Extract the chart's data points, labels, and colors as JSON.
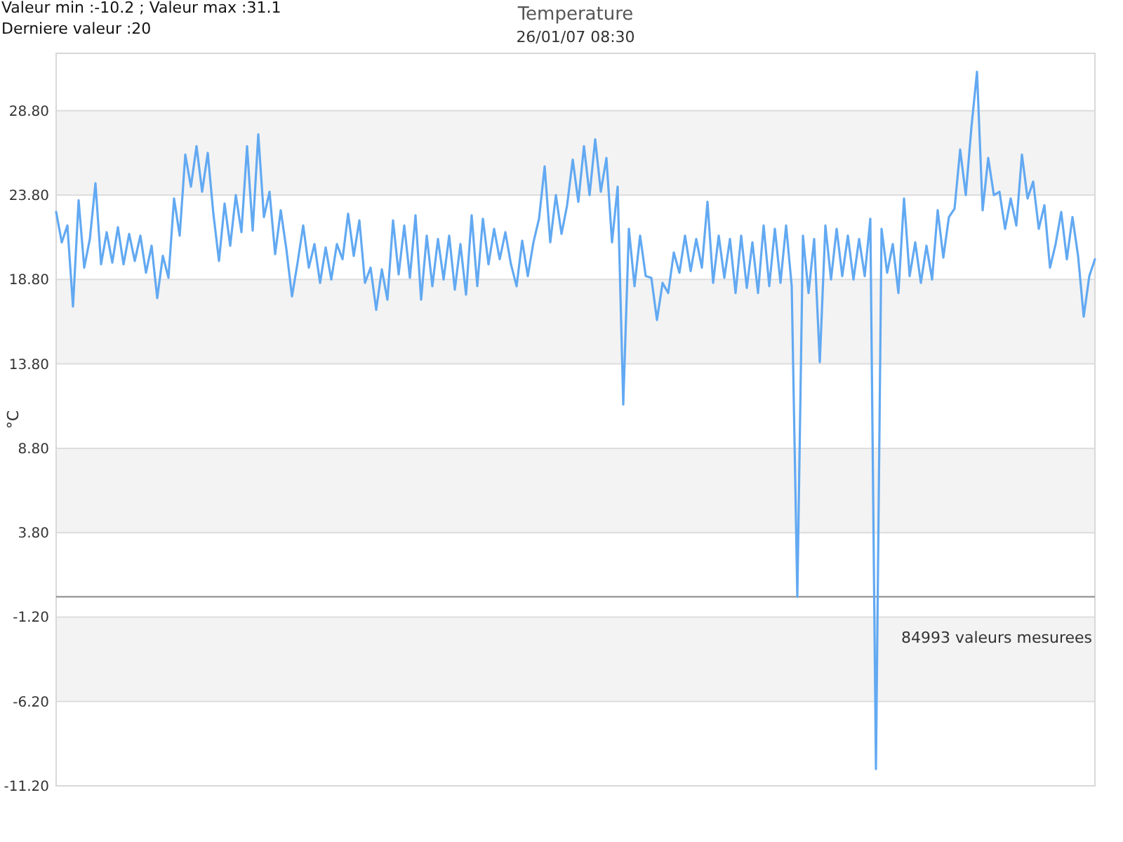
{
  "chart_data": {
    "type": "line",
    "title": "Temperature",
    "subtitle": "26/01/07 08:30",
    "ylabel": "°C",
    "annotations": [
      "Valeur min :-10.2 ; Valeur max :31.1",
      "Derniere valeur :20",
      "84993 valeurs mesurees"
    ],
    "categories": [
      null,
      null,
      null,
      null,
      null,
      null,
      null,
      null,
      null,
      null,
      null,
      null,
      null,
      null,
      null,
      null,
      null,
      null,
      null,
      null,
      null,
      null,
      null,
      null,
      null,
      null,
      null,
      null,
      null,
      null,
      null,
      null,
      null,
      null,
      null,
      null,
      null,
      null,
      null,
      null,
      null,
      null,
      null,
      null,
      null,
      null,
      null,
      null,
      null,
      null,
      null,
      null,
      null,
      null,
      null,
      null,
      null,
      null,
      null,
      null,
      null,
      null,
      null,
      null,
      null,
      null,
      null,
      null,
      null,
      null,
      null,
      null,
      null,
      null,
      null,
      null,
      null,
      null,
      null,
      null,
      null,
      null,
      null,
      null,
      null,
      null,
      null,
      null,
      null,
      null,
      null,
      null,
      null,
      null,
      null,
      null,
      null,
      null,
      null,
      null,
      null,
      null,
      null,
      null,
      null,
      null,
      null,
      null,
      null,
      null,
      null,
      null,
      null,
      null,
      null,
      null,
      null,
      null,
      null,
      null,
      null,
      null,
      null,
      null,
      null,
      null,
      null,
      null,
      null,
      null,
      null,
      null,
      null,
      null,
      null,
      null,
      null,
      null,
      null,
      null,
      null,
      null,
      null,
      null,
      null,
      null,
      null,
      null,
      null,
      null,
      null,
      null,
      null,
      null,
      null,
      null,
      null,
      null,
      null,
      null,
      null,
      null,
      null,
      null,
      null,
      null,
      null,
      null,
      null,
      null,
      null,
      null,
      null,
      null,
      null,
      null,
      null,
      null,
      null,
      null,
      null,
      null,
      null,
      null,
      null,
      null
    ],
    "values": [
      22.8,
      21.0,
      22.0,
      17.2,
      23.5,
      19.5,
      21.2,
      24.5,
      19.7,
      21.6,
      19.8,
      21.9,
      19.7,
      21.5,
      19.9,
      21.4,
      19.2,
      20.8,
      17.7,
      20.2,
      18.9,
      23.6,
      21.4,
      26.2,
      24.3,
      26.7,
      24.0,
      26.3,
      22.7,
      19.9,
      23.3,
      20.8,
      23.8,
      21.6,
      26.7,
      21.7,
      27.4,
      22.5,
      24.0,
      20.3,
      22.9,
      20.6,
      17.8,
      19.8,
      22.0,
      19.5,
      20.9,
      18.6,
      20.7,
      18.8,
      20.9,
      20.0,
      22.7,
      20.2,
      22.3,
      18.6,
      19.5,
      17.0,
      19.4,
      17.6,
      22.3,
      19.1,
      22.0,
      18.9,
      22.6,
      17.6,
      21.4,
      18.4,
      21.2,
      18.8,
      21.4,
      18.2,
      20.9,
      17.9,
      22.6,
      18.4,
      22.4,
      19.7,
      21.8,
      20.0,
      21.6,
      19.7,
      18.4,
      21.1,
      19.0,
      21.0,
      22.4,
      25.5,
      21.0,
      23.8,
      21.5,
      23.2,
      25.9,
      23.4,
      26.7,
      23.8,
      27.1,
      24.0,
      26.0,
      21.0,
      24.3,
      11.4,
      21.8,
      18.4,
      21.4,
      19.0,
      18.9,
      16.4,
      18.6,
      18.0,
      20.4,
      19.2,
      21.4,
      19.3,
      21.2,
      19.5,
      23.4,
      18.6,
      21.4,
      18.9,
      21.2,
      18.0,
      21.4,
      18.3,
      21.0,
      18.0,
      22.0,
      18.4,
      21.8,
      18.6,
      22.0,
      18.4,
      0,
      21.4,
      18.0,
      21.2,
      13.9,
      22.0,
      18.8,
      21.8,
      19.0,
      21.4,
      18.8,
      21.2,
      19.0,
      22.4,
      -10.2,
      21.8,
      19.2,
      20.9,
      18.0,
      23.6,
      19.0,
      21.0,
      18.6,
      20.8,
      18.8,
      22.9,
      20.1,
      22.5,
      23.0,
      26.5,
      23.8,
      27.8,
      31.1,
      22.9,
      26.0,
      23.8,
      24.0,
      21.8,
      23.6,
      22.0,
      26.2,
      23.6,
      24.6,
      21.8,
      23.2,
      19.5,
      20.9,
      22.8,
      20.0,
      22.5,
      20.2,
      16.6,
      19.0,
      20.0
    ],
    "color": "#62a9f2",
    "ylim": [
      -11.2,
      32.2
    ],
    "yticks": [
      {
        "value": -11.2,
        "label": "-11.20"
      },
      {
        "value": -6.2,
        "label": "-6.20"
      },
      {
        "value": -1.2,
        "label": "-1.20"
      },
      {
        "value": 3.8,
        "label": "3.80"
      },
      {
        "value": 8.8,
        "label": "8.80"
      },
      {
        "value": 13.8,
        "label": "13.80"
      },
      {
        "value": 18.8,
        "label": "18.80"
      },
      {
        "value": 23.8,
        "label": "23.80"
      },
      {
        "value": 28.8,
        "label": "28.80"
      }
    ],
    "grid": "y",
    "bands": [
      {
        "axis": "y",
        "from": 23.8,
        "to": 28.8,
        "color": "#f3f3f3"
      },
      {
        "axis": "y",
        "from": 13.8,
        "to": 18.8,
        "color": "#f3f3f3"
      },
      {
        "axis": "y",
        "from": 3.8,
        "to": 8.8,
        "color": "#f3f3f3"
      },
      {
        "axis": "y",
        "from": -6.2,
        "to": -1.2,
        "color": "#f3f3f3"
      }
    ],
    "ref_lines": [
      {
        "axis": "y",
        "value": 0,
        "color": "#888888"
      }
    ],
    "tick_labels": "y"
  }
}
